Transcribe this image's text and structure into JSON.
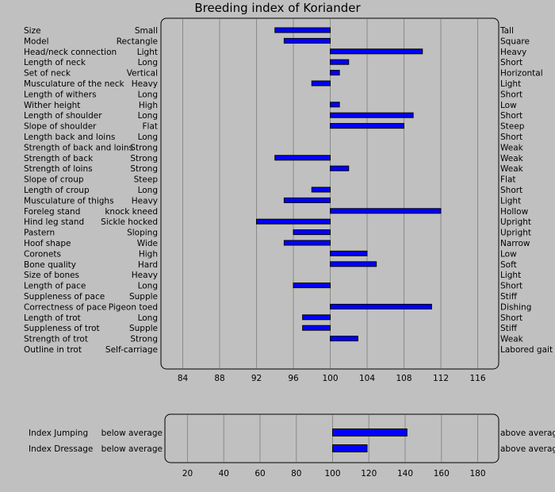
{
  "chart_data": [
    {
      "type": "bar",
      "title": "Breeding index of Koriander",
      "baseline": 100,
      "xlim": [
        80,
        120
      ],
      "xticks": [
        84,
        88,
        92,
        96,
        100,
        104,
        108,
        112,
        116
      ],
      "bar_color": "#0000ff",
      "grid": true,
      "rows": [
        {
          "trait": "Size",
          "low": "Small",
          "high": "Tall",
          "value": 94
        },
        {
          "trait": "Model",
          "low": "Rectangle",
          "high": "Square",
          "value": 95
        },
        {
          "trait": "Head/neck connection",
          "low": "Light",
          "high": "Heavy",
          "value": 110
        },
        {
          "trait": "Length of neck",
          "low": "Long",
          "high": "Short",
          "value": 102
        },
        {
          "trait": "Set of neck",
          "low": "Vertical",
          "high": "Horizontal",
          "value": 101
        },
        {
          "trait": "Musculature of the neck",
          "low": "Heavy",
          "high": "Light",
          "value": 98
        },
        {
          "trait": "Length of withers",
          "low": "Long",
          "high": "Short",
          "value": 100
        },
        {
          "trait": "Wither height",
          "low": "High",
          "high": "Low",
          "value": 101
        },
        {
          "trait": "Length of shoulder",
          "low": "Long",
          "high": "Short",
          "value": 109
        },
        {
          "trait": "Slope of shoulder",
          "low": "Flat",
          "high": "Steep",
          "value": 108
        },
        {
          "trait": "Length back and loins",
          "low": "Long",
          "high": "Short",
          "value": 100
        },
        {
          "trait": "Strength of back and loins",
          "low": "Strong",
          "high": "Weak",
          "value": 100
        },
        {
          "trait": "Strength of back",
          "low": "Strong",
          "high": "Weak",
          "value": 94
        },
        {
          "trait": "Strength of loins",
          "low": "Strong",
          "high": "Weak",
          "value": 102
        },
        {
          "trait": "Slope of croup",
          "low": "Steep",
          "high": "Flat",
          "value": 100
        },
        {
          "trait": "Length of croup",
          "low": "Long",
          "high": "Short",
          "value": 98
        },
        {
          "trait": "Musculature of thighs",
          "low": "Heavy",
          "high": "Light",
          "value": 95
        },
        {
          "trait": "Foreleg stand",
          "low": "knock kneed",
          "high": "Hollow",
          "value": 112
        },
        {
          "trait": "Hind leg stand",
          "low": "Sickle hocked",
          "high": "Upright",
          "value": 92
        },
        {
          "trait": "Pastern",
          "low": "Sloping",
          "high": "Upright",
          "value": 96
        },
        {
          "trait": "Hoof shape",
          "low": "Wide",
          "high": "Narrow",
          "value": 95
        },
        {
          "trait": "Coronets",
          "low": "High",
          "high": "Low",
          "value": 104
        },
        {
          "trait": "Bone quality",
          "low": "Hard",
          "high": "Soft",
          "value": 105
        },
        {
          "trait": "Size of bones",
          "low": "Heavy",
          "high": "Light",
          "value": 100
        },
        {
          "trait": "Length of pace",
          "low": "Long",
          "high": "Short",
          "value": 96
        },
        {
          "trait": "Suppleness of pace",
          "low": "Supple",
          "high": "Stiff",
          "value": 100
        },
        {
          "trait": "Correctness of pace",
          "low": "Pigeon toed",
          "high": "Dishing",
          "value": 111
        },
        {
          "trait": "Length of trot",
          "low": "Long",
          "high": "Short",
          "value": 97
        },
        {
          "trait": "Suppleness of trot",
          "low": "Supple",
          "high": "Stiff",
          "value": 97
        },
        {
          "trait": "Strength of trot",
          "low": "Strong",
          "high": "Weak",
          "value": 103
        },
        {
          "trait": "Outline in trot",
          "low": "Self-carriage",
          "high": "Labored gait",
          "value": 100
        }
      ]
    },
    {
      "type": "bar",
      "baseline": 100,
      "xlim": [
        10,
        190
      ],
      "xticks": [
        20,
        40,
        60,
        80,
        100,
        120,
        140,
        160,
        180
      ],
      "bar_color": "#0000ff",
      "grid": true,
      "rows": [
        {
          "trait": "Index Jumping",
          "low": "below average",
          "high": "above average",
          "value": 141
        },
        {
          "trait": "Index Dressage",
          "low": "below average",
          "high": "above average",
          "value": 119
        }
      ]
    }
  ]
}
